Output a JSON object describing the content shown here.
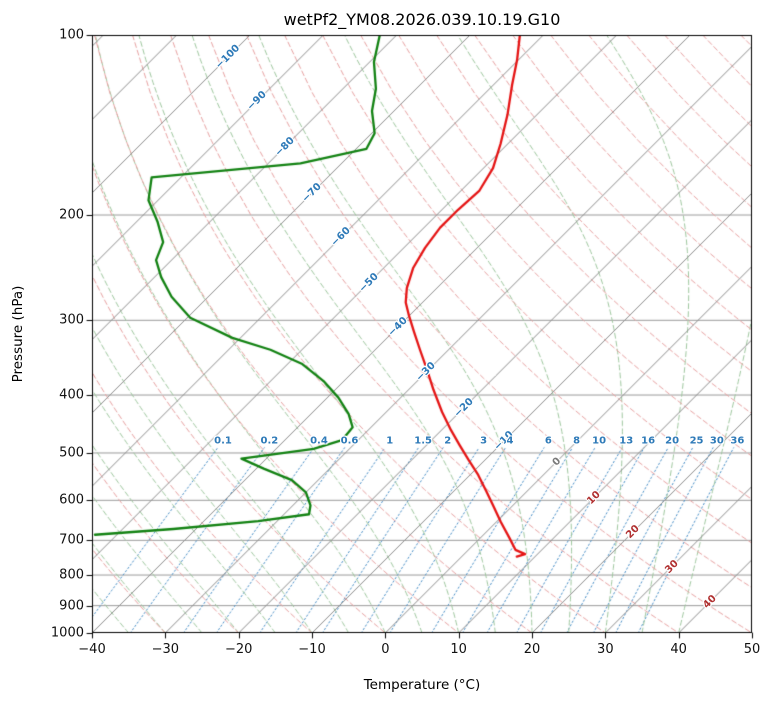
{
  "chart_data": {
    "type": "line",
    "subtype": "skewT-logP-sounding",
    "title": "wetPf2_YM08.2026.039.10.19.G10",
    "xlabel": "Temperature (°C)",
    "ylabel": "Pressure (hPa)",
    "x_range": [
      -40,
      50
    ],
    "p_range": [
      100,
      1000
    ],
    "x_ticks": [
      -40,
      -30,
      -20,
      -10,
      0,
      10,
      20,
      30,
      40,
      50
    ],
    "p_ticks": [
      100,
      200,
      300,
      400,
      500,
      600,
      700,
      800,
      900,
      1000
    ],
    "skew": "45deg",
    "grid": true,
    "colors": {
      "grid": "#9a9a9a",
      "isotherm": "#8c8c8c",
      "dry_adiabat": "#e8a2a2",
      "moist_adiabat": "#9fc89f",
      "mixing_ratio": "#4a90c8",
      "temperature_curve": "#e51414",
      "dewpoint_curve": "#128212",
      "label_negative": "#2e7ab8",
      "label_zero": "#7a7a7a",
      "label_positive": "#b03030",
      "mixing_label": "#2e7ab8"
    },
    "isotherms": {
      "start": -160,
      "end": 50,
      "step": 10
    },
    "dry_adiabats": {
      "start": -40,
      "end": 190,
      "step": 10
    },
    "moist_adiabats": {
      "start": -40,
      "end": 40,
      "step": 5
    },
    "isotherm_labels": [
      {
        "t": -100,
        "p": 109
      },
      {
        "t": -90,
        "p": 129
      },
      {
        "t": -80,
        "p": 154
      },
      {
        "t": -70,
        "p": 184
      },
      {
        "t": -60,
        "p": 218
      },
      {
        "t": -50,
        "p": 260
      },
      {
        "t": -40,
        "p": 308
      },
      {
        "t": -30,
        "p": 366
      },
      {
        "t": -20,
        "p": 420
      },
      {
        "t": -10,
        "p": 477
      },
      {
        "t": 0,
        "p": 517
      },
      {
        "t": 10,
        "p": 594
      },
      {
        "t": 20,
        "p": 678
      },
      {
        "t": 30,
        "p": 775
      },
      {
        "t": 40,
        "p": 886
      }
    ],
    "mixing_ratio_values": [
      0.1,
      0.2,
      0.4,
      0.6,
      1,
      1.5,
      2,
      3,
      4,
      6,
      8,
      10,
      13,
      16,
      20,
      25,
      30,
      36
    ],
    "mixing_label_pressure": 477,
    "mixing_line_top_pressure": 490,
    "temperature_profile_pT": [
      [
        100,
        -63.2
      ],
      [
        110,
        -60.2
      ],
      [
        121,
        -57.5
      ],
      [
        136,
        -54.0
      ],
      [
        152,
        -51.0
      ],
      [
        167,
        -48.7
      ],
      [
        182,
        -47.5
      ],
      [
        196,
        -47.8
      ],
      [
        210,
        -47.8
      ],
      [
        227,
        -47.1
      ],
      [
        245,
        -46.0
      ],
      [
        265,
        -44.1
      ],
      [
        280,
        -42.3
      ],
      [
        295,
        -40.0
      ],
      [
        314,
        -37.1
      ],
      [
        336,
        -33.9
      ],
      [
        363,
        -30.2
      ],
      [
        392,
        -26.6
      ],
      [
        427,
        -22.4
      ],
      [
        458,
        -18.7
      ],
      [
        485,
        -15.5
      ],
      [
        514,
        -12.2
      ],
      [
        544,
        -8.9
      ],
      [
        579,
        -5.6
      ],
      [
        613,
        -2.6
      ],
      [
        652,
        0.6
      ],
      [
        694,
        4.0
      ],
      [
        726,
        6.4
      ],
      [
        738,
        8.3
      ],
      [
        745,
        7.5
      ]
    ],
    "dewpoint_profile_pT": [
      [
        100,
        -82.3
      ],
      [
        111,
        -79.4
      ],
      [
        123,
        -75.5
      ],
      [
        134,
        -73.0
      ],
      [
        146,
        -69.6
      ],
      [
        155,
        -68.6
      ],
      [
        164,
        -75.6
      ],
      [
        173,
        -94.0
      ],
      [
        189,
        -91.3
      ],
      [
        205,
        -87.2
      ],
      [
        222,
        -83.6
      ],
      [
        238,
        -82.1
      ],
      [
        254,
        -79.1
      ],
      [
        274,
        -75.0
      ],
      [
        297,
        -69.6
      ],
      [
        321,
        -61.1
      ],
      [
        336,
        -54.3
      ],
      [
        355,
        -48.0
      ],
      [
        380,
        -42.6
      ],
      [
        404,
        -38.5
      ],
      [
        430,
        -34.9
      ],
      [
        453,
        -32.5
      ],
      [
        476,
        -32.2
      ],
      [
        492,
        -34.9
      ],
      [
        503,
        -39.9
      ],
      [
        511,
        -43.4
      ],
      [
        531,
        -39.0
      ],
      [
        555,
        -33.6
      ],
      [
        582,
        -30.0
      ],
      [
        612,
        -27.6
      ],
      [
        633,
        -26.6
      ],
      [
        650,
        -32.6
      ],
      [
        670,
        -43.1
      ],
      [
        685,
        -53.0
      ]
    ]
  }
}
